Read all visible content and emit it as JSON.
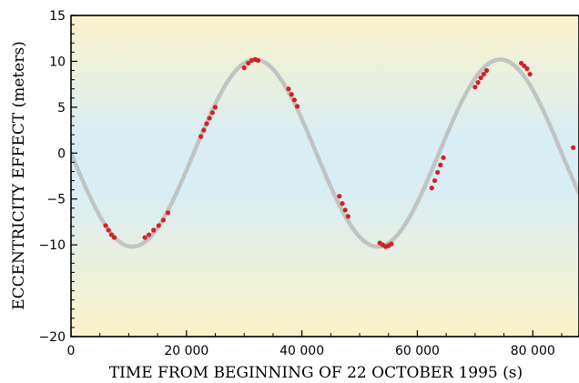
{
  "chart_data": {
    "type": "line",
    "xlabel": "TIME FROM BEGINNING OF 22 OCTOBER 1995 (s)",
    "ylabel": "ECCENTRICITY EFFECT (meters)",
    "xlim": [
      0,
      88000
    ],
    "ylim": [
      -20,
      15
    ],
    "x_ticks": [
      0,
      20000,
      40000,
      60000,
      80000
    ],
    "x_tick_labels": [
      "0",
      "20 000",
      "40 000",
      "60 000",
      "80 000"
    ],
    "y_ticks": [
      -20,
      -10,
      -5,
      0,
      5,
      10,
      15
    ],
    "y_tick_labels": [
      "−20",
      "−10",
      "−5",
      "0",
      "5",
      "10",
      "15"
    ],
    "grid": false,
    "background": "gradient-yellow-blue-yellow",
    "series": [
      {
        "kind": "model-curve",
        "color": "#c0c4c2",
        "amplitude": 10.2,
        "period": 42500,
        "x": [
          0,
          5000,
          10600,
          21250,
          31900,
          42500,
          53100,
          63750,
          74400,
          85000,
          88000
        ],
        "values": [
          0,
          -6.7,
          -10.2,
          0,
          10.2,
          0,
          -10.2,
          0,
          10.2,
          0,
          -4.1
        ]
      },
      {
        "kind": "observations",
        "color": "#d42027",
        "x": [
          6000,
          6500,
          7000,
          7500,
          12800,
          13500,
          14300,
          15200,
          16000,
          16800,
          22500,
          23000,
          23500,
          24000,
          24500,
          25000,
          30000,
          30700,
          31300,
          31900,
          32400,
          37700,
          38200,
          38700,
          39200,
          46500,
          47000,
          47500,
          48000,
          53500,
          54000,
          54500,
          55000,
          55500,
          62500,
          63000,
          63500,
          64000,
          64500,
          70000,
          70500,
          71000,
          71500,
          72000,
          78000,
          78500,
          79000,
          79500,
          87000
        ],
        "values": [
          -7.9,
          -8.4,
          -8.9,
          -9.2,
          -9.2,
          -8.9,
          -8.4,
          -7.9,
          -7.3,
          -6.5,
          1.8,
          2.5,
          3.2,
          3.8,
          4.4,
          5.0,
          9.3,
          9.8,
          10.1,
          10.2,
          10.1,
          7.0,
          6.4,
          5.8,
          5.1,
          -4.7,
          -5.5,
          -6.2,
          -6.9,
          -9.8,
          -10.0,
          -10.2,
          -10.1,
          -9.9,
          -3.8,
          -3.0,
          -2.1,
          -1.3,
          -0.5,
          7.2,
          7.7,
          8.2,
          8.6,
          9.0,
          9.8,
          9.5,
          9.2,
          8.6,
          0.6
        ]
      }
    ]
  }
}
